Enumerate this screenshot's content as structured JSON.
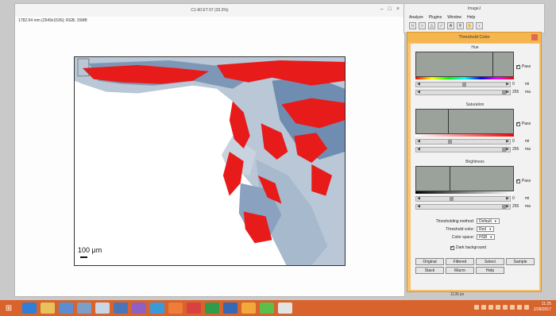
{
  "image_window": {
    "title": "C1-60 ET 07 (33.3%)",
    "info": "1782.54 mm (2549x1536); RGB; 15MB",
    "scalebar_label": "100 μm"
  },
  "imagej": {
    "title": "ImageJ",
    "menu": [
      "Analyze",
      "Plugins",
      "Window",
      "Help"
    ]
  },
  "threshold": {
    "title": "Threshold Color",
    "hue_label": "Hue",
    "saturation_label": "Saturation",
    "brightness_label": "Brightness",
    "pass_label": "Pass",
    "hue_min": "0",
    "hue_max": "255",
    "sat_min": "0",
    "sat_max": "255",
    "bri_min": "0",
    "bri_max": "255",
    "min_unit": "mi",
    "max_unit": "ma",
    "method_label": "Thresholding method:",
    "method_value": "Default",
    "color_label": "Threshold color:",
    "color_value": "Red",
    "space_label": "Color space:",
    "space_value": "HSB",
    "dark_bg_label": "Dark background",
    "buttons": [
      "Original",
      "Filtered",
      "Select",
      "Sample",
      "Stack",
      "Macro",
      "Help"
    ],
    "status": "1136 px"
  },
  "taskbar": {
    "time": "11:25",
    "date": "2/28/2017"
  },
  "colors": {
    "threshold_red": "#e81b1b",
    "dialog_orange": "#f7c36b",
    "taskbar_orange": "#d8632c",
    "tissue_blue": "#93a9c4"
  }
}
